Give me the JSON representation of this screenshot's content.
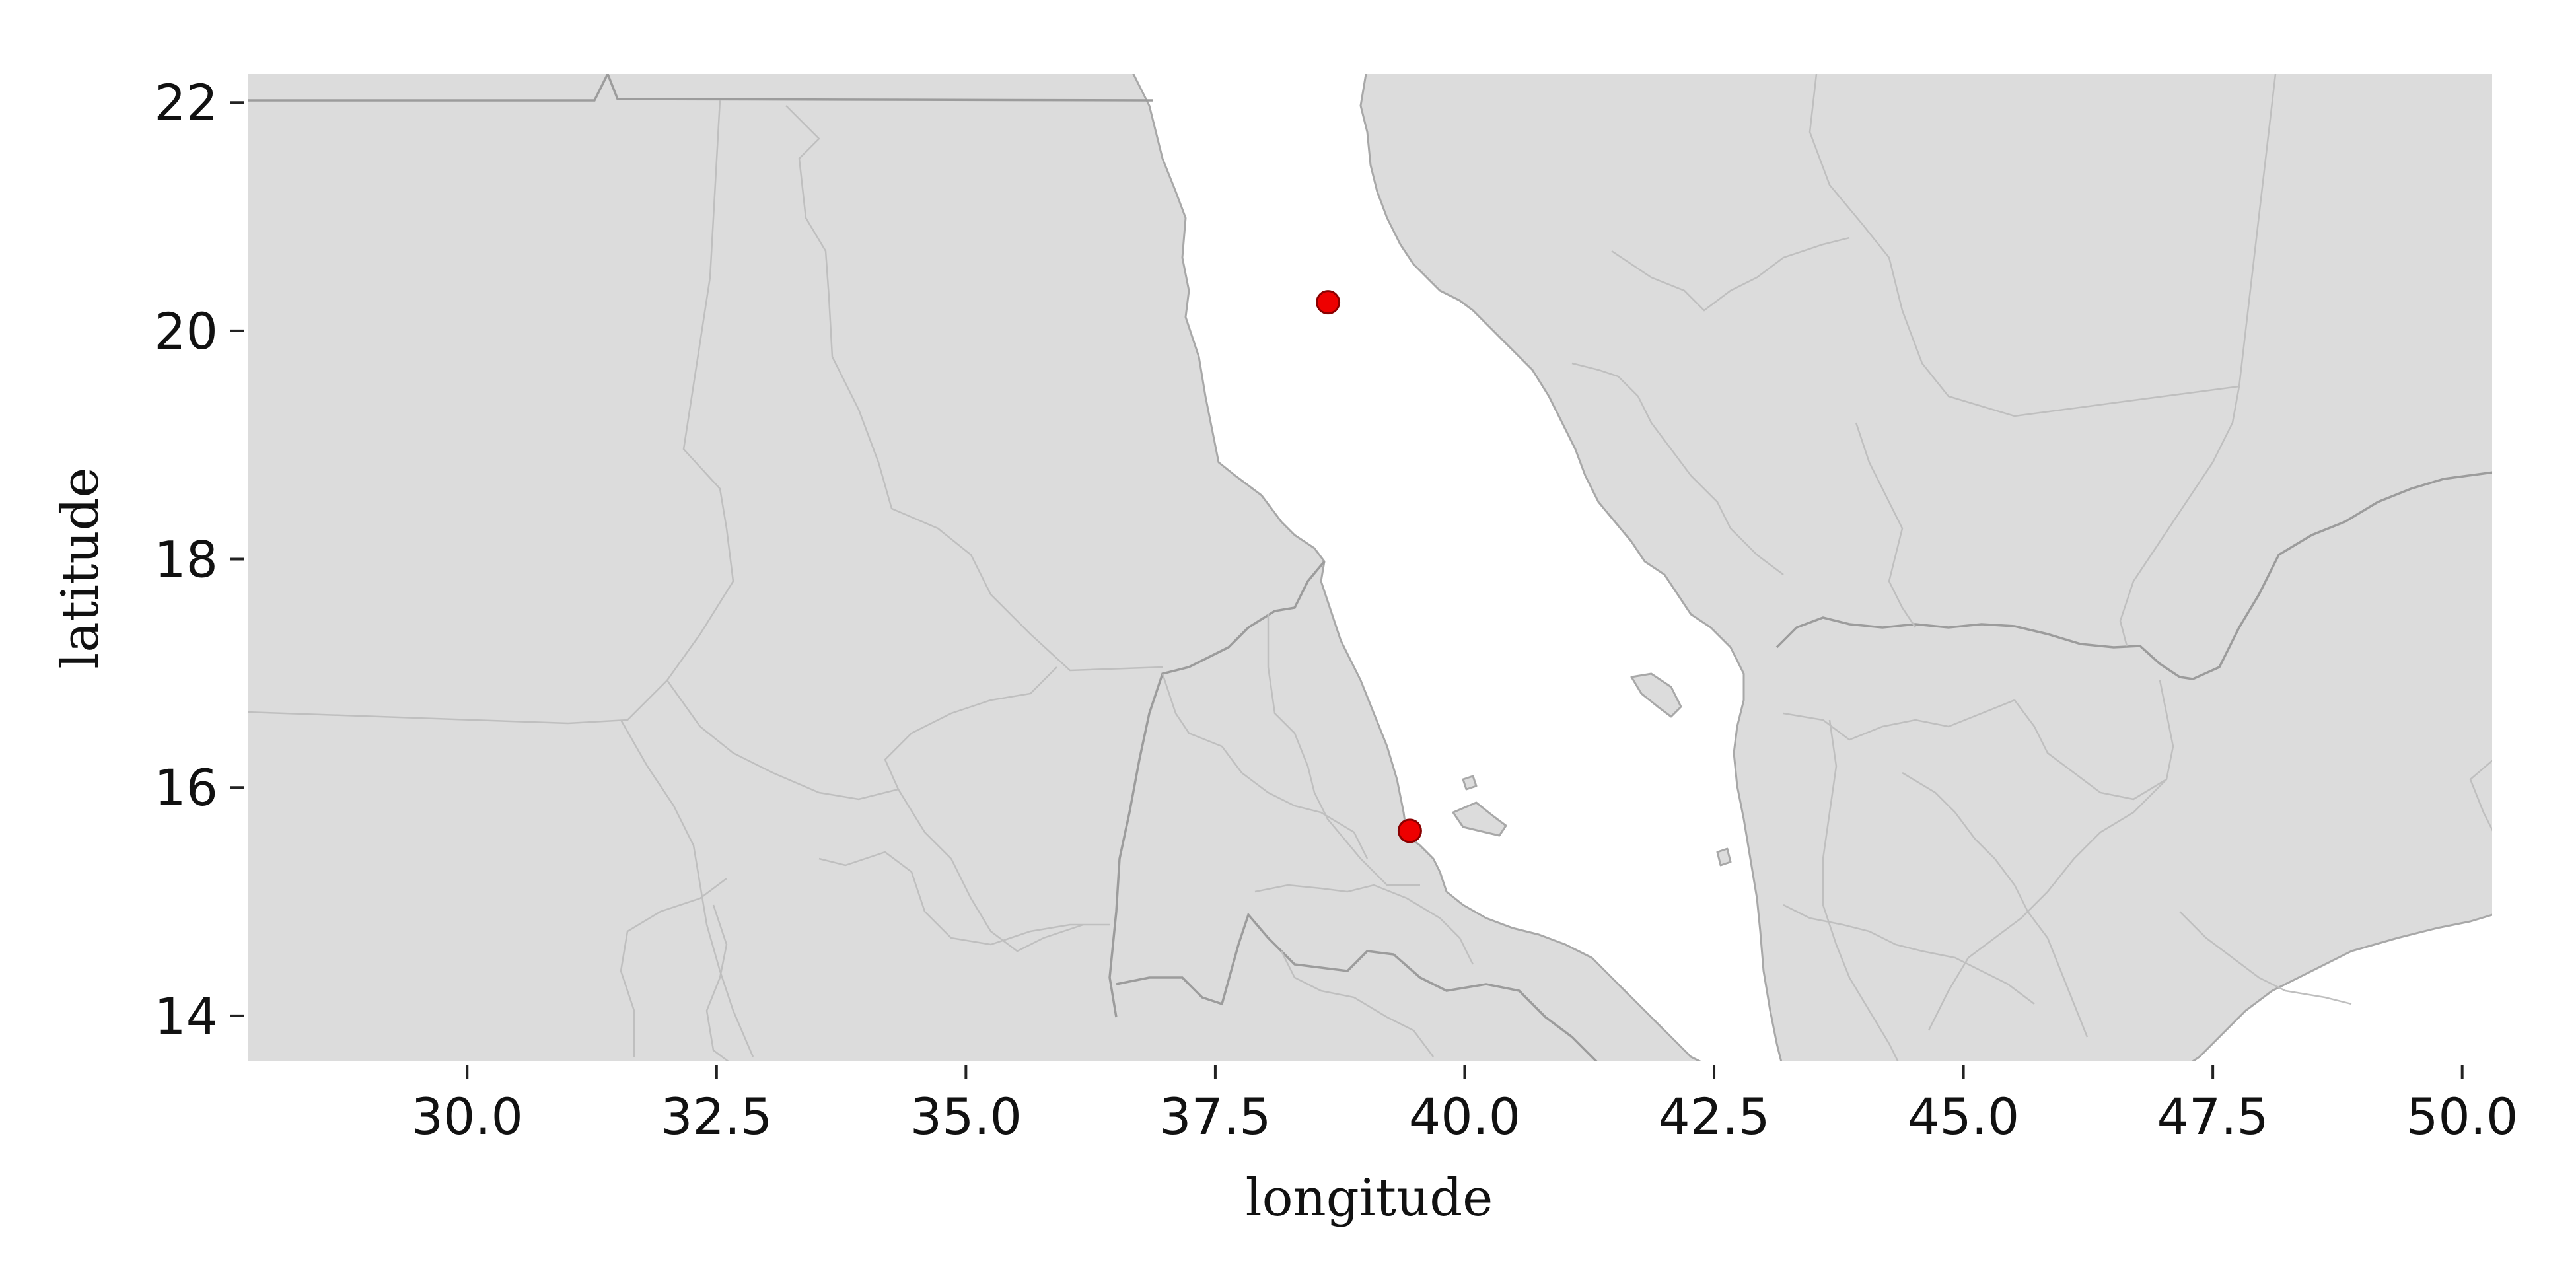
{
  "chart_data": {
    "type": "scatter",
    "title": "",
    "xlabel": "longitude",
    "ylabel": "latitude",
    "xlim": [
      27.8,
      50.3
    ],
    "ylim": [
      13.6,
      22.25
    ],
    "xticks": [
      "30.0",
      "32.5",
      "35.0",
      "37.5",
      "40.0",
      "42.5",
      "45.0",
      "47.5",
      "50.0"
    ],
    "yticks": [
      "14",
      "16",
      "18",
      "20",
      "22"
    ],
    "background": "basemap of land (light grey) and water (white)",
    "points": [
      {
        "lon": 38.63,
        "lat": 20.25
      },
      {
        "lon": 39.45,
        "lat": 15.62
      }
    ],
    "colors": {
      "land": "#dcdcdc",
      "coast": "#a8a8a8",
      "marker": "#ee0000",
      "marker_edge": "#8a0000"
    }
  }
}
